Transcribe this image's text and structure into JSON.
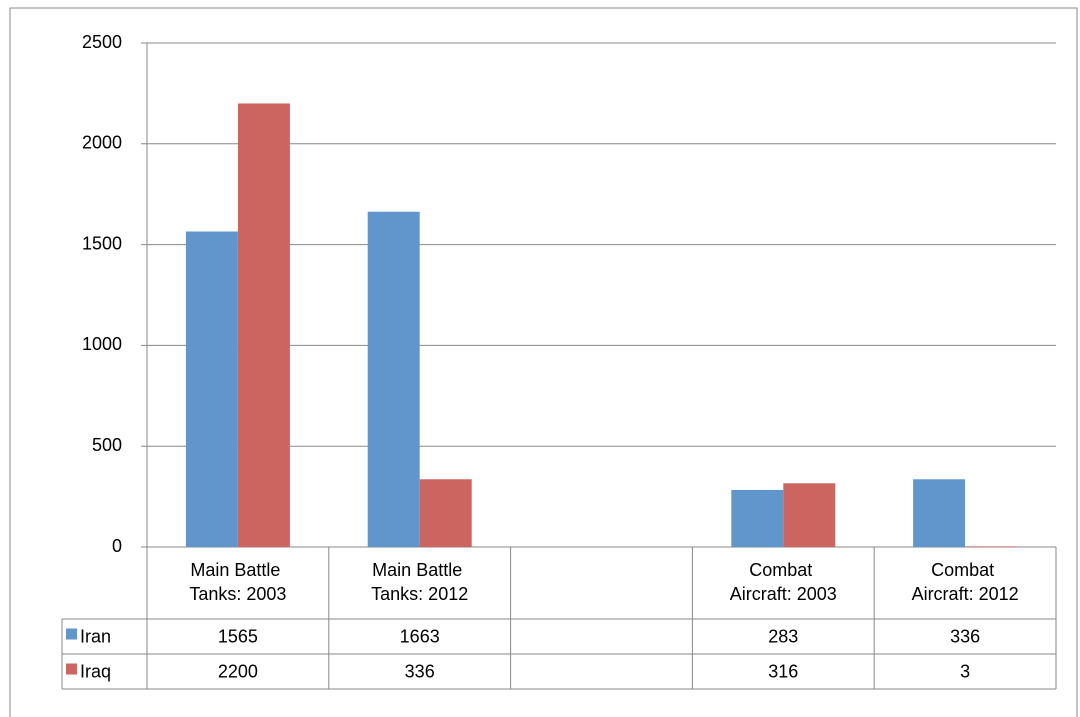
{
  "chart_data": {
    "type": "bar",
    "categories": [
      "Main Battle Tanks: 2003",
      "Main Battle Tanks: 2012",
      null,
      "Combat Aircraft: 2003",
      "Combat Aircraft: 2012"
    ],
    "series": [
      {
        "name": "Iran",
        "color": "#6096cc",
        "values": [
          1565,
          1663,
          null,
          283,
          336
        ]
      },
      {
        "name": "Iraq",
        "color": "#cc6560",
        "values": [
          2200,
          336,
          null,
          316,
          3
        ]
      }
    ],
    "ylim": [
      0,
      2500
    ],
    "yticks": [
      0,
      500,
      1000,
      1500,
      2000,
      2500
    ],
    "grid": true
  }
}
